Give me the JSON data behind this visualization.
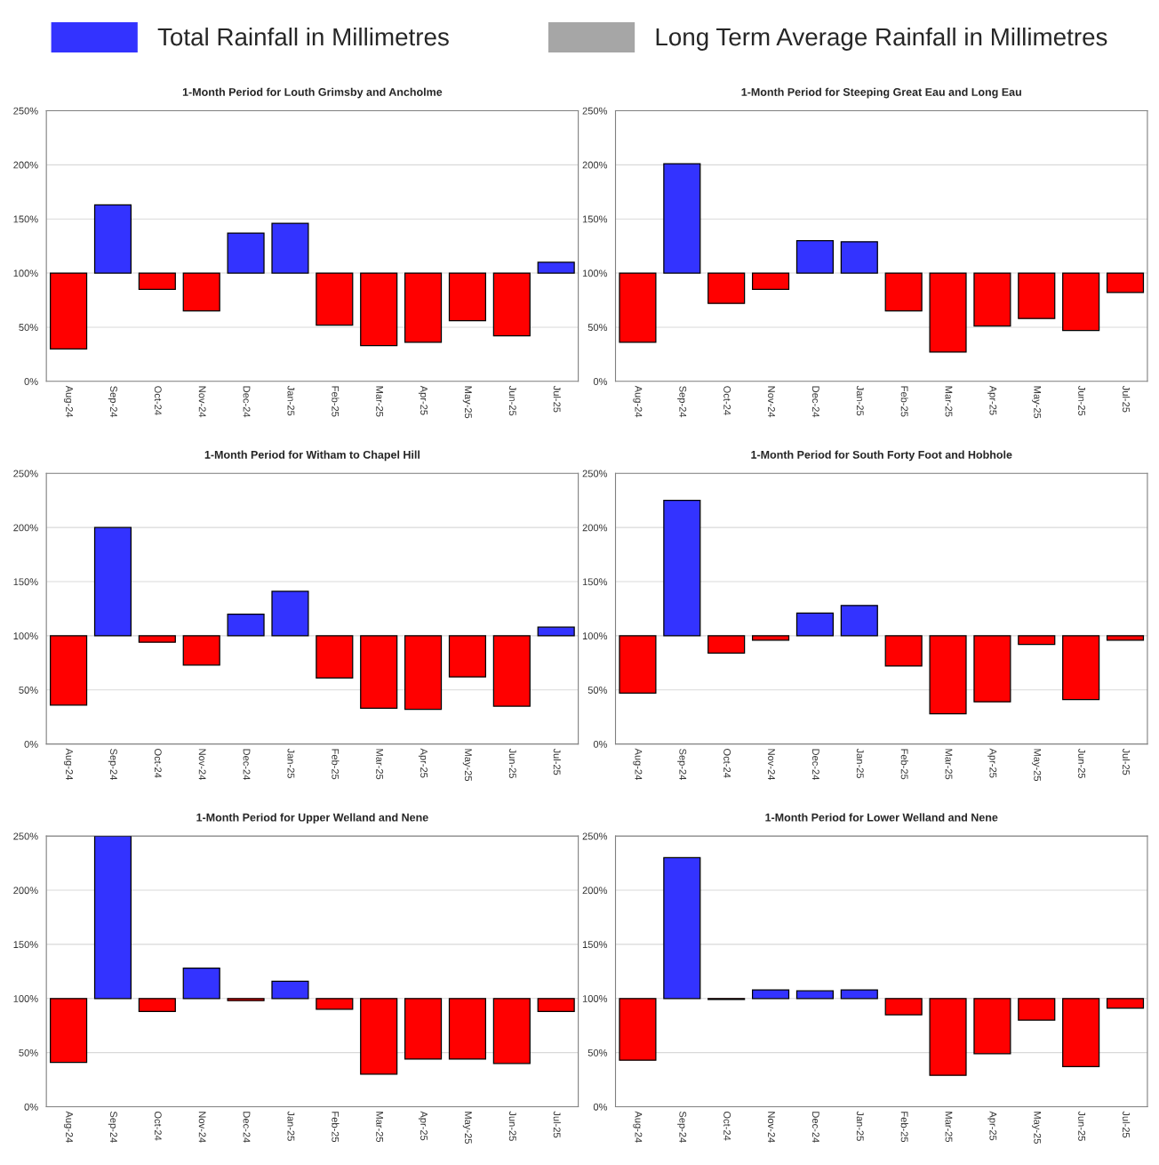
{
  "chart_data": [
    {
      "type": "bar",
      "title": "1-Month Period for Louth Grimsby and Ancholme",
      "legend": "top",
      "categories": [
        "Aug-24",
        "Sep-24",
        "Oct-24",
        "Nov-24",
        "Dec-24",
        "Jan-25",
        "Feb-25",
        "Mar-25",
        "Apr-25",
        "May-25",
        "Jun-25",
        "Jul-25"
      ],
      "series": [
        {
          "name": "Total Rainfall in Millimetres",
          "color": "#3333ff",
          "base": [
            100,
            100,
            100,
            100,
            100,
            100,
            100,
            100,
            100,
            100,
            100,
            100
          ],
          "colors": [
            "#ff0000",
            "#3333ff",
            "#ff0000",
            "#ff0000",
            "#3333ff",
            "#3333ff",
            "#ff0000",
            "#ff0000",
            "#ff0000",
            "#ff0000",
            "#ff0000",
            "#3333ff"
          ],
          "values": [
            -70,
            63,
            -15,
            -35,
            37,
            46,
            -48,
            -67,
            -64,
            -44,
            -58,
            10
          ]
        },
        {
          "name": "Long Term Average Rainfall in Millimetres",
          "color": "#a6a6a6",
          "values": [
            null,
            null,
            null,
            null,
            null,
            null,
            null,
            null,
            null,
            null,
            null,
            null
          ]
        }
      ],
      "ylim": [
        0,
        250
      ],
      "yticks": [
        {
          "value": 0,
          "label": "0%"
        },
        {
          "value": 50,
          "label": "50%"
        },
        {
          "value": 100,
          "label": "100%"
        },
        {
          "value": 150,
          "label": "150%"
        },
        {
          "value": 200,
          "label": "200%"
        },
        {
          "value": 250,
          "label": "250%"
        }
      ],
      "grid": "y"
    },
    {
      "type": "bar",
      "title": "1-Month Period for Steeping Great Eau and Long Eau",
      "categories": [
        "Aug-24",
        "Sep-24",
        "Oct-24",
        "Nov-24",
        "Dec-24",
        "Jan-25",
        "Feb-25",
        "Mar-25",
        "Apr-25",
        "May-25",
        "Jun-25",
        "Jul-25"
      ],
      "series": [
        {
          "base": [
            100,
            100,
            100,
            100,
            100,
            100,
            100,
            100,
            100,
            100,
            100,
            100
          ],
          "colors": [
            "#ff0000",
            "#3333ff",
            "#ff0000",
            "#ff0000",
            "#3333ff",
            "#3333ff",
            "#ff0000",
            "#ff0000",
            "#ff0000",
            "#ff0000",
            "#ff0000",
            "#ff0000"
          ],
          "values": [
            -64,
            101,
            -28,
            -15,
            30,
            29,
            -35,
            -73,
            -49,
            -42,
            -53,
            -18
          ]
        }
      ],
      "ylim": [
        0,
        250
      ],
      "yticks": [
        {
          "value": 0,
          "label": "0%"
        },
        {
          "value": 50,
          "label": "50%"
        },
        {
          "value": 100,
          "label": "100%"
        },
        {
          "value": 150,
          "label": "150%"
        },
        {
          "value": 200,
          "label": "200%"
        },
        {
          "value": 250,
          "label": "250%"
        }
      ],
      "grid": "y"
    },
    {
      "type": "bar",
      "title": "1-Month Period for Witham to Chapel Hill",
      "categories": [
        "Aug-24",
        "Sep-24",
        "Oct-24",
        "Nov-24",
        "Dec-24",
        "Jan-25",
        "Feb-25",
        "Mar-25",
        "Apr-25",
        "May-25",
        "Jun-25",
        "Jul-25"
      ],
      "series": [
        {
          "base": [
            100,
            100,
            100,
            100,
            100,
            100,
            100,
            100,
            100,
            100,
            100,
            100
          ],
          "colors": [
            "#ff0000",
            "#3333ff",
            "#ff0000",
            "#ff0000",
            "#3333ff",
            "#3333ff",
            "#ff0000",
            "#ff0000",
            "#ff0000",
            "#ff0000",
            "#ff0000",
            "#3333ff"
          ],
          "values": [
            -64,
            100,
            -6,
            -27,
            20,
            41,
            -39,
            -67,
            -68,
            -38,
            -65,
            8
          ]
        }
      ],
      "ylim": [
        0,
        250
      ],
      "yticks": [
        {
          "value": 0,
          "label": "0%"
        },
        {
          "value": 50,
          "label": "50%"
        },
        {
          "value": 100,
          "label": "100%"
        },
        {
          "value": 150,
          "label": "150%"
        },
        {
          "value": 200,
          "label": "200%"
        },
        {
          "value": 250,
          "label": "250%"
        }
      ],
      "grid": "y"
    },
    {
      "type": "bar",
      "title": "1-Month Period for South Forty Foot and Hobhole",
      "categories": [
        "Aug-24",
        "Sep-24",
        "Oct-24",
        "Nov-24",
        "Dec-24",
        "Jan-25",
        "Feb-25",
        "Mar-25",
        "Apr-25",
        "May-25",
        "Jun-25",
        "Jul-25"
      ],
      "series": [
        {
          "base": [
            100,
            100,
            100,
            100,
            100,
            100,
            100,
            100,
            100,
            100,
            100,
            100
          ],
          "colors": [
            "#ff0000",
            "#3333ff",
            "#ff0000",
            "#ff0000",
            "#3333ff",
            "#3333ff",
            "#ff0000",
            "#ff0000",
            "#ff0000",
            "#ff0000",
            "#ff0000",
            "#ff0000"
          ],
          "values": [
            -53,
            125,
            -16,
            -4,
            21,
            28,
            -28,
            -72,
            -61,
            -8,
            -59,
            -4
          ]
        }
      ],
      "ylim": [
        0,
        250
      ],
      "yticks": [
        {
          "value": 0,
          "label": "0%"
        },
        {
          "value": 50,
          "label": "50%"
        },
        {
          "value": 100,
          "label": "100%"
        },
        {
          "value": 150,
          "label": "150%"
        },
        {
          "value": 200,
          "label": "200%"
        },
        {
          "value": 250,
          "label": "250%"
        }
      ],
      "grid": "y"
    },
    {
      "type": "bar",
      "title": "1-Month Period for Upper Welland and Nene",
      "categories": [
        "Aug-24",
        "Sep-24",
        "Oct-24",
        "Nov-24",
        "Dec-24",
        "Jan-25",
        "Feb-25",
        "Mar-25",
        "Apr-25",
        "May-25",
        "Jun-25",
        "Jul-25"
      ],
      "series": [
        {
          "base": [
            100,
            100,
            100,
            100,
            100,
            100,
            100,
            100,
            100,
            100,
            100,
            100
          ],
          "colors": [
            "#ff0000",
            "#3333ff",
            "#ff0000",
            "#3333ff",
            "#ff0000",
            "#3333ff",
            "#ff0000",
            "#ff0000",
            "#ff0000",
            "#ff0000",
            "#ff0000",
            "#ff0000"
          ],
          "values": [
            -59,
            150,
            -12,
            28,
            -2,
            16,
            -10,
            -70,
            -56,
            -56,
            -60,
            -12
          ]
        }
      ],
      "ylim": [
        0,
        250
      ],
      "yticks": [
        {
          "value": 0,
          "label": "0%"
        },
        {
          "value": 50,
          "label": "50%"
        },
        {
          "value": 100,
          "label": "100%"
        },
        {
          "value": 150,
          "label": "150%"
        },
        {
          "value": 200,
          "label": "200%"
        },
        {
          "value": 250,
          "label": "250%"
        }
      ],
      "grid": "y"
    },
    {
      "type": "bar",
      "title": "1-Month Period for Lower Welland and Nene",
      "categories": [
        "Aug-24",
        "Sep-24",
        "Oct-24",
        "Nov-24",
        "Dec-24",
        "Jan-25",
        "Feb-25",
        "Mar-25",
        "Apr-25",
        "May-25",
        "Jun-25",
        "Jul-25"
      ],
      "series": [
        {
          "base": [
            100,
            100,
            100,
            100,
            100,
            100,
            100,
            100,
            100,
            100,
            100,
            100
          ],
          "colors": [
            "#ff0000",
            "#3333ff",
            "#ff0000",
            "#3333ff",
            "#3333ff",
            "#3333ff",
            "#ff0000",
            "#ff0000",
            "#ff0000",
            "#ff0000",
            "#ff0000",
            "#ff0000"
          ],
          "values": [
            -57,
            130,
            -1,
            8,
            7,
            8,
            -15,
            -71,
            -51,
            -20,
            -63,
            -9
          ]
        }
      ],
      "ylim": [
        0,
        250
      ],
      "yticks": [
        {
          "value": 0,
          "label": "0%"
        },
        {
          "value": 50,
          "label": "50%"
        },
        {
          "value": 100,
          "label": "100%"
        },
        {
          "value": 150,
          "label": "150%"
        },
        {
          "value": 200,
          "label": "200%"
        },
        {
          "value": 250,
          "label": "250%"
        }
      ],
      "grid": "y"
    }
  ]
}
